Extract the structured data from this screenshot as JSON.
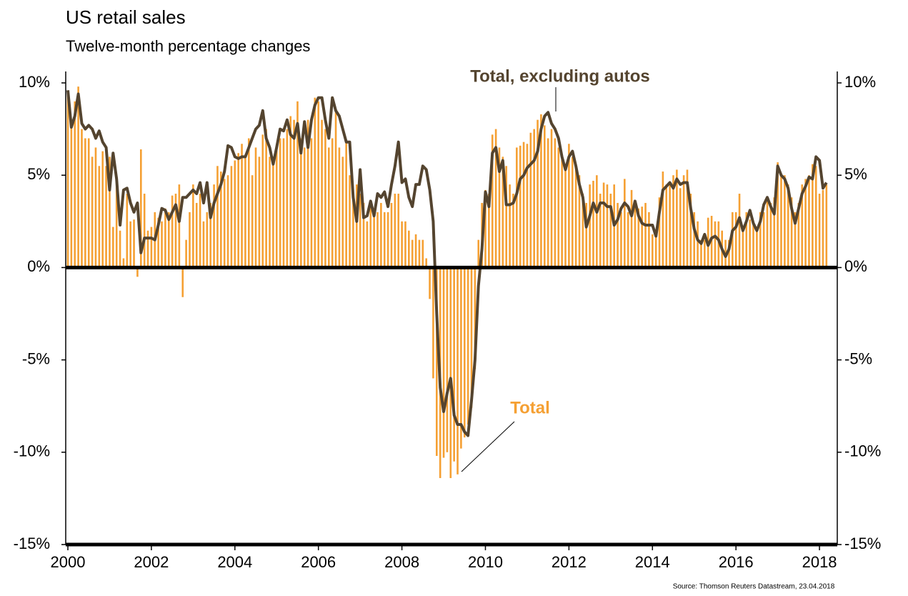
{
  "chart_data": {
    "type": "bar",
    "title": "US retail sales",
    "subtitle": "Twelve-month percentage changes",
    "source": "Source: Thomson Reuters Datastream, 23.04.2018",
    "categories": [
      "2000",
      null,
      null,
      null,
      null,
      null,
      null,
      null,
      null,
      null,
      null,
      null,
      null,
      null,
      null,
      null,
      null,
      null,
      null,
      null,
      null,
      null,
      null,
      null,
      "2002",
      null,
      null,
      null,
      null,
      null,
      null,
      null,
      null,
      null,
      null,
      null,
      null,
      null,
      null,
      null,
      null,
      null,
      null,
      null,
      null,
      null,
      null,
      null,
      "2004",
      null,
      null,
      null,
      null,
      null,
      null,
      null,
      null,
      null,
      null,
      null,
      null,
      null,
      null,
      null,
      null,
      null,
      null,
      null,
      null,
      null,
      null,
      null,
      "2006",
      null,
      null,
      null,
      null,
      null,
      null,
      null,
      null,
      null,
      null,
      null,
      null,
      null,
      null,
      null,
      null,
      null,
      null,
      null,
      null,
      null,
      null,
      null,
      "2008",
      null,
      null,
      null,
      null,
      null,
      null,
      null,
      null,
      null,
      null,
      null,
      null,
      null,
      null,
      null,
      null,
      null,
      null,
      null,
      null,
      null,
      null,
      null,
      "2010",
      null,
      null,
      null,
      null,
      null,
      null,
      null,
      null,
      null,
      null,
      null,
      null,
      null,
      null,
      null,
      null,
      null,
      null,
      null,
      null,
      null,
      null,
      null,
      "2012",
      null,
      null,
      null,
      null,
      null,
      null,
      null,
      null,
      null,
      null,
      null,
      null,
      null,
      null,
      null,
      null,
      null,
      null,
      null,
      null,
      null,
      null,
      null,
      "2014",
      null,
      null,
      null,
      null,
      null,
      null,
      null,
      null,
      null,
      null,
      null,
      null,
      null,
      null,
      null,
      null,
      null,
      null,
      null,
      null,
      null,
      null,
      null,
      "2016",
      null,
      null,
      null,
      null,
      null,
      null,
      null,
      null,
      null,
      null,
      null,
      null,
      null,
      null,
      null,
      null,
      null,
      null,
      null,
      null,
      null,
      null,
      null,
      "2018",
      null,
      null
    ],
    "series": [
      {
        "name": "Total",
        "type": "bar",
        "color": "#f5a033",
        "values": [
          9.5,
          8,
          9,
          9.8,
          7.5,
          7,
          7,
          6,
          6.5,
          5.5,
          6.3,
          5.5,
          6.0,
          2.2,
          5.0,
          2.0,
          0.5,
          4.0,
          2.5,
          2.6,
          -0.5,
          6.4,
          4.0,
          2.0,
          2.2,
          3.0,
          2.7,
          2.5,
          3.2,
          3.0,
          3.9,
          4.0,
          4.5,
          -1.6,
          1.5,
          3.0,
          4.5,
          3.5,
          4.0,
          2.5,
          3.0,
          3.5,
          4.5,
          5.5,
          5.2,
          4.8,
          5.0,
          5.5,
          5.8,
          6.2,
          6.7,
          6.0,
          7.0,
          5.0,
          6.5,
          6.0,
          7.2,
          7.5,
          6.0,
          6.0,
          6.5,
          7.0,
          7.0,
          7.5,
          8.2,
          8.0,
          9.0,
          7.0,
          6.5,
          8.0,
          7.0,
          9.2,
          9.0,
          8.0,
          7.5,
          6.5,
          7.0,
          8.5,
          6.5,
          6.0,
          6.8,
          5.0,
          4.0,
          4.5,
          4.0,
          3.5,
          2.5,
          3.5,
          3.0,
          3.0,
          3.5,
          3.0,
          3.0,
          3.5,
          4.0,
          4.0,
          2.5,
          2.5,
          2.0,
          1.5,
          1.8,
          1.5,
          1.5,
          0.5,
          -1.7,
          -6.0,
          -10.2,
          -11.4,
          -10.3,
          -10.0,
          -11.4,
          -10.5,
          -11.2,
          -9.8,
          -9.2,
          -8.5,
          -7.6,
          -5.5,
          1.5,
          3.5,
          4.2,
          4.0,
          7.2,
          7.5,
          6.5,
          6.0,
          5.5,
          4.5,
          4.0,
          6.5,
          6.6,
          6.8,
          6.7,
          7.3,
          7.5,
          8.0,
          8.3,
          7.7,
          7.0,
          7.5,
          7.0,
          6.5,
          6.0,
          5.5,
          6.7,
          6.0,
          5.5,
          5.0,
          4.0,
          3.5,
          4.5,
          4.7,
          5.0,
          4.0,
          4.6,
          4.5,
          4.0,
          4.5,
          3.5,
          3.0,
          4.8,
          3.0,
          4.2,
          3.3,
          3.2,
          3.3,
          3.5,
          3.0,
          1.8,
          2.0,
          3.8,
          5.2,
          4.5,
          4.5,
          5.0,
          5.3,
          4.3,
          5.0,
          5.3,
          4.0,
          3.0,
          2.5,
          1.5,
          1.5,
          2.7,
          2.8,
          2.5,
          2.5,
          2.0,
          1.5,
          1.5,
          3.0,
          3.0,
          4.0,
          2.0,
          3.0,
          2.6,
          2.4,
          2.2,
          3.0,
          3.0,
          3.6,
          3.5,
          3.8,
          5.7,
          5.0,
          5.0,
          4.5,
          3.8,
          3.0,
          3.5,
          4.5,
          4.8,
          5.0,
          5.6,
          5.5,
          4.0,
          4.2,
          4.5
        ]
      },
      {
        "name": "Total, excluding autos",
        "type": "line",
        "color": "#54442f",
        "values": [
          9.6,
          7.6,
          8.2,
          9.4,
          7.8,
          7.5,
          7.7,
          7.5,
          7.0,
          7.4,
          6.8,
          6.5,
          4.2,
          6.2,
          4.8,
          2.3,
          4.2,
          4.3,
          3.5,
          3.0,
          3.5,
          0.8,
          1.6,
          1.6,
          1.6,
          1.5,
          2.3,
          3.2,
          3.1,
          2.6,
          3.0,
          3.4,
          2.5,
          3.8,
          3.8,
          4.0,
          4.2,
          4.0,
          4.6,
          3.5,
          4.6,
          2.7,
          3.5,
          4.0,
          4.5,
          5.2,
          6.6,
          6.5,
          6.0,
          5.9,
          6.0,
          6.0,
          6.5,
          7.0,
          7.5,
          7.7,
          8.5,
          7.0,
          6.5,
          5.6,
          6.5,
          7.5,
          7.4,
          8.0,
          7.2,
          7.0,
          7.8,
          6.2,
          7.9,
          6.5,
          8.0,
          8.8,
          9.2,
          9.2,
          8.0,
          7.0,
          9.2,
          8.5,
          8.2,
          7.5,
          6.8,
          6.8,
          3.8,
          2.5,
          5.3,
          2.7,
          2.8,
          3.6,
          2.8,
          4.0,
          3.8,
          4.1,
          3.3,
          4.5,
          5.5,
          6.8,
          4.6,
          4.8,
          3.8,
          3.3,
          4.5,
          4.5,
          5.5,
          5.3,
          4.2,
          2.5,
          -2.5,
          -6.5,
          -7.8,
          -6.8,
          -6.0,
          -8.0,
          -8.5,
          -8.5,
          -8.9,
          -9.1,
          -7.2,
          -5.0,
          -1.0,
          1.0,
          4.1,
          3.3,
          6.2,
          6.5,
          5.2,
          5.8,
          3.4,
          3.4,
          3.5,
          4.0,
          4.8,
          5.0,
          5.4,
          5.6,
          5.8,
          6.3,
          7.5,
          8.2,
          8.4,
          7.8,
          7.5,
          7.0,
          6.0,
          5.3,
          6.0,
          6.3,
          5.5,
          4.5,
          3.8,
          2.2,
          2.8,
          3.5,
          3.0,
          3.5,
          3.5,
          3.3,
          3.3,
          2.3,
          2.6,
          3.2,
          3.5,
          3.3,
          2.8,
          3.6,
          2.8,
          2.4,
          2.3,
          2.3,
          2.3,
          1.7,
          3.0,
          4.2,
          4.4,
          4.6,
          4.3,
          4.8,
          4.5,
          4.6,
          4.6,
          3.2,
          2.1,
          1.5,
          1.3,
          1.8,
          1.2,
          1.6,
          1.7,
          1.5,
          1.0,
          0.6,
          1.0,
          2.0,
          2.2,
          2.7,
          2.0,
          2.5,
          3.1,
          2.4,
          2.0,
          2.5,
          3.4,
          3.8,
          3.3,
          2.9,
          5.5,
          5.0,
          4.8,
          4.3,
          3.2,
          2.4,
          3.2,
          4.0,
          4.4,
          4.9,
          4.8,
          6.0,
          5.8,
          4.3,
          4.6
        ]
      }
    ],
    "ylim": [
      -15,
      10
    ],
    "yticks": [
      {
        "value": -15,
        "label": "-15%"
      },
      {
        "value": -10,
        "label": "-10%"
      },
      {
        "value": -5,
        "label": "-5%"
      },
      {
        "value": 0,
        "label": "0%"
      },
      {
        "value": 5,
        "label": "5%"
      },
      {
        "value": 10,
        "label": "10%"
      }
    ],
    "y2lim": [
      -15,
      10
    ],
    "y2ticks": [
      {
        "value": -15,
        "label": "-15%"
      },
      {
        "value": -10,
        "label": "-10%"
      },
      {
        "value": -5,
        "label": "-5%"
      },
      {
        "value": 0,
        "label": "0%"
      },
      {
        "value": 5,
        "label": "5%"
      },
      {
        "value": 10,
        "label": "10%"
      }
    ],
    "grid": false
  }
}
